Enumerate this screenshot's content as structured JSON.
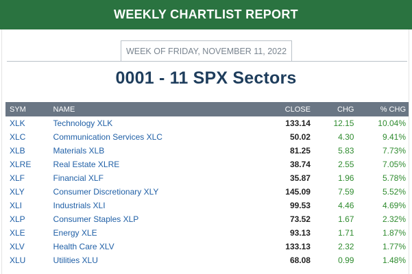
{
  "banner": {
    "title": "WEEKLY CHARTLIST REPORT"
  },
  "week": {
    "label": "WEEK OF FRIDAY, NOVEMBER 11, 2022"
  },
  "page": {
    "title": "0001 - 11 SPX Sectors"
  },
  "table": {
    "headers": {
      "sym": "SYM",
      "name": "NAME",
      "close": "CLOSE",
      "chg": "CHG",
      "pct": "% CHG"
    },
    "rows": [
      {
        "sym": "XLK",
        "name": "Technology XLK",
        "close": "133.14",
        "chg": "12.15",
        "pct": "10.04%"
      },
      {
        "sym": "XLC",
        "name": "Communication Services XLC",
        "close": "50.02",
        "chg": "4.30",
        "pct": "9.41%"
      },
      {
        "sym": "XLB",
        "name": "Materials XLB",
        "close": "81.25",
        "chg": "5.83",
        "pct": "7.73%"
      },
      {
        "sym": "XLRE",
        "name": "Real Estate XLRE",
        "close": "38.74",
        "chg": "2.55",
        "pct": "7.05%"
      },
      {
        "sym": "XLF",
        "name": "Financial XLF",
        "close": "35.87",
        "chg": "1.96",
        "pct": "5.78%"
      },
      {
        "sym": "XLY",
        "name": "Consumer Discretionary XLY",
        "close": "145.09",
        "chg": "7.59",
        "pct": "5.52%"
      },
      {
        "sym": "XLI",
        "name": "Industrials XLI",
        "close": "99.53",
        "chg": "4.46",
        "pct": "4.69%"
      },
      {
        "sym": "XLP",
        "name": "Consumer Staples XLP",
        "close": "73.52",
        "chg": "1.67",
        "pct": "2.32%"
      },
      {
        "sym": "XLE",
        "name": "Energy XLE",
        "close": "93.13",
        "chg": "1.71",
        "pct": "1.87%"
      },
      {
        "sym": "XLV",
        "name": "Health Care XLV",
        "close": "133.13",
        "chg": "2.32",
        "pct": "1.77%"
      },
      {
        "sym": "XLU",
        "name": "Utilities XLU",
        "close": "68.08",
        "chg": "0.99",
        "pct": "1.48%"
      }
    ]
  },
  "colors": {
    "banner": "#2a7340",
    "header": "#6a7684",
    "title": "#1e3d5c",
    "link": "#1f5fa6",
    "positive": "#2e8b2e"
  }
}
